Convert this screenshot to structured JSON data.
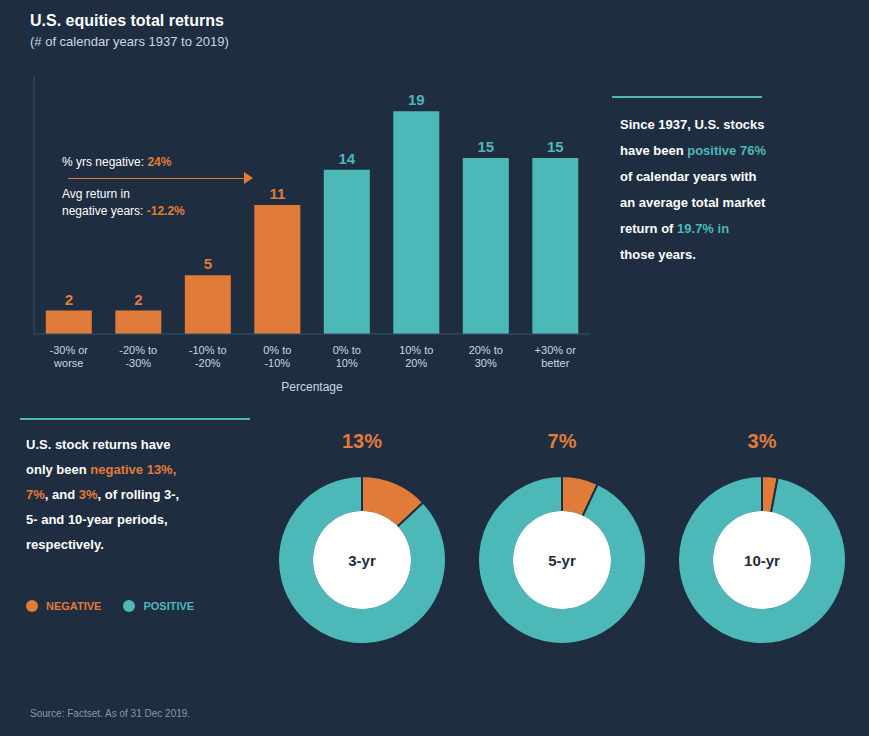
{
  "chart_data": [
    {
      "type": "bar",
      "title": "U.S. equities total returns",
      "subtitle": "(# of calendar years 1937 to 2019)",
      "categories": [
        "-30% or\nworse",
        "-20% to\n-30%",
        "-10% to\n-20%",
        "0% to\n-10%",
        "0% to\n10%",
        "10% to\n20%",
        "20% to\n30%",
        "+30% or\nbetter"
      ],
      "values": [
        2,
        2,
        5,
        11,
        14,
        19,
        15,
        15
      ],
      "colors": [
        "#e07b39",
        "#e07b39",
        "#e07b39",
        "#e07b39",
        "#4db8b8",
        "#4db8b8",
        "#4db8b8",
        "#4db8b8"
      ],
      "xlabel": "Percentage",
      "ylim": [
        0,
        22
      ],
      "tick_labels": "x",
      "data_labels": true,
      "grid": false,
      "annotations": [
        [
          {
            "text": "% yrs negative: ",
            "color": "#ffffff"
          },
          {
            "text": "24%",
            "color": "#e07b39"
          }
        ],
        [
          {
            "text": "Avg return in",
            "color": "#ffffff"
          }
        ],
        [
          {
            "text": "negative years: ",
            "color": "#ffffff"
          },
          {
            "text": "-12.2%",
            "color": "#e07b39"
          }
        ]
      ],
      "side_text": [
        [
          {
            "text": "Since 1937, U.S. stocks",
            "color": "#ffffff"
          }
        ],
        [
          {
            "text": "have been ",
            "color": "#ffffff"
          },
          {
            "text": "positive 76%",
            "color": "#4db8b8"
          }
        ],
        [
          {
            "text": "of calendar years with",
            "color": "#ffffff"
          }
        ],
        [
          {
            "text": "an average total market",
            "color": "#ffffff"
          }
        ],
        [
          {
            "text": "return of ",
            "color": "#ffffff"
          },
          {
            "text": "19.7% in",
            "color": "#4db8b8"
          }
        ],
        [
          {
            "text": "those years.",
            "color": "#ffffff"
          }
        ]
      ]
    },
    {
      "type": "pie",
      "title": "13%",
      "center_label": "3-yr",
      "labels": [
        "NEGATIVE",
        "POSITIVE"
      ],
      "values": [
        13,
        87
      ],
      "colors": [
        "#e07b39",
        "#4db8b8"
      ]
    },
    {
      "type": "pie",
      "title": "7%",
      "center_label": "5-yr",
      "labels": [
        "NEGATIVE",
        "POSITIVE"
      ],
      "values": [
        7,
        93
      ],
      "colors": [
        "#e07b39",
        "#4db8b8"
      ]
    },
    {
      "type": "pie",
      "title": "3%",
      "center_label": "10-yr",
      "labels": [
        "NEGATIVE",
        "POSITIVE"
      ],
      "values": [
        3,
        97
      ],
      "colors": [
        "#e07b39",
        "#4db8b8"
      ]
    }
  ],
  "notes": [
    [
      {
        "text": "U.S. stock returns have",
        "color": "#ffffff"
      }
    ],
    [
      {
        "text": "only been ",
        "color": "#ffffff"
      },
      {
        "text": "negative 13%,",
        "color": "#e07b39"
      }
    ],
    [
      {
        "text": "7%",
        "color": "#e07b39"
      },
      {
        "text": ", and ",
        "color": "#ffffff"
      },
      {
        "text": "3%",
        "color": "#e07b39"
      },
      {
        "text": ", of rolling 3-,",
        "color": "#ffffff"
      }
    ],
    [
      {
        "text": "5- and 10-year periods,",
        "color": "#ffffff"
      }
    ],
    [
      {
        "text": "respectively.",
        "color": "#ffffff"
      }
    ]
  ],
  "source": "Source: Factset. As of 31 Dec 2019."
}
